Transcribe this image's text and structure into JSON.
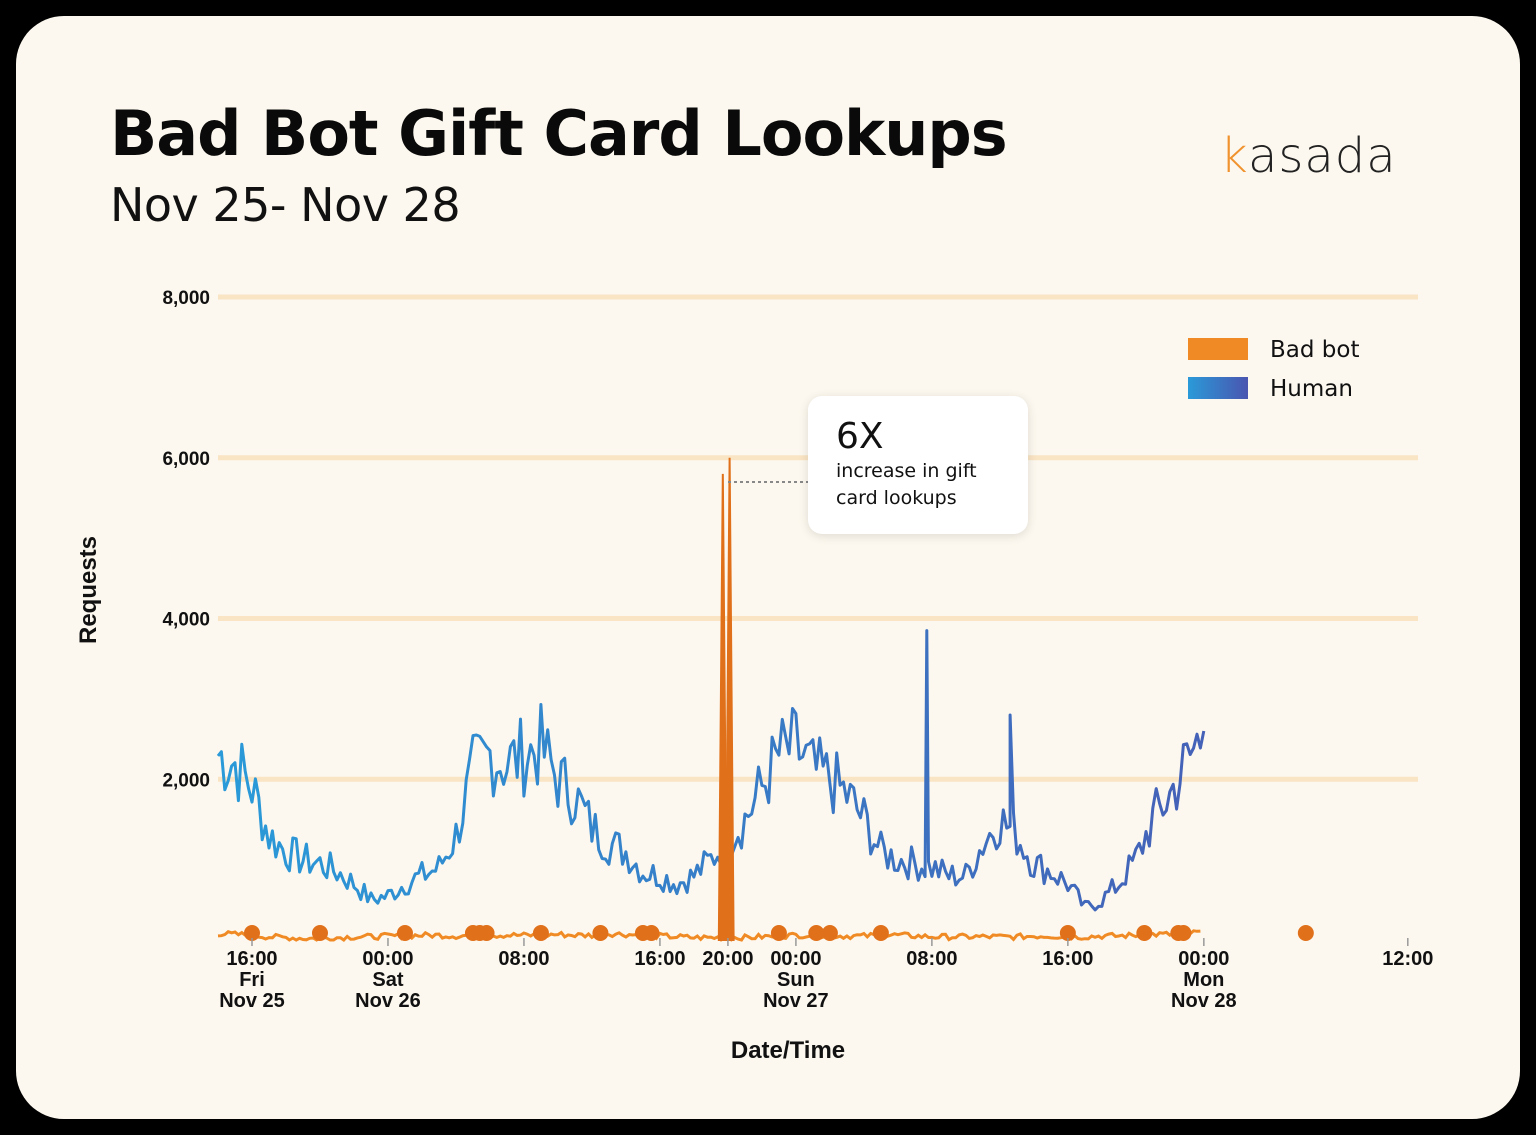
{
  "title": "Bad Bot Gift Card Lookups",
  "subtitle": "Nov 25- Nov 28",
  "logo": {
    "prefix": "k",
    "rest": "asada"
  },
  "callout": {
    "headline": "6X",
    "text": "increase in gift card lookups"
  },
  "colors": {
    "background": "#fcf8ef",
    "bad_bot": "#f08a24",
    "bad_bot_dark": "#e0701a",
    "human_start": "#2a9ad8",
    "human_end": "#4a55b0",
    "gridline": "#f9e4c4"
  },
  "chart_data": {
    "type": "line",
    "title": "Bad Bot Gift Card Lookups",
    "xlabel": "Date/Time",
    "ylabel": "Requests",
    "ylim": [
      0,
      8000
    ],
    "y_ticks": [
      "8,000",
      "6,000",
      "4,000",
      "2,000"
    ],
    "x_tick_values_hours": [
      16,
      24,
      32,
      40,
      44,
      48,
      56,
      64,
      72,
      84
    ],
    "x_ticks": [
      {
        "l1": "16:00",
        "l2": "Fri",
        "l3": "Nov 25"
      },
      {
        "l1": "00:00",
        "l2": "Sat",
        "l3": "Nov 26"
      },
      {
        "l1": "08:00",
        "l2": "",
        "l3": ""
      },
      {
        "l1": "16:00",
        "l2": "",
        "l3": ""
      },
      {
        "l1": "20:00",
        "l2": "",
        "l3": ""
      },
      {
        "l1": "00:00",
        "l2": "Sun",
        "l3": "Nov 27"
      },
      {
        "l1": "08:00",
        "l2": "",
        "l3": ""
      },
      {
        "l1": "16:00",
        "l2": "",
        "l3": ""
      },
      {
        "l1": "00:00",
        "l2": "Mon",
        "l3": "Nov 28"
      },
      {
        "l1": "12:00",
        "l2": "",
        "l3": ""
      }
    ],
    "xlim_hours": [
      14,
      84.6
    ],
    "legend": {
      "position": "top-right",
      "items": [
        "Bad bot",
        "Human"
      ]
    },
    "grid": true,
    "series": [
      {
        "name": "Human",
        "x_start_hour": 14,
        "x_step_hour": 1,
        "values": [
          2300,
          2200,
          1900,
          1300,
          1100,
          1000,
          950,
          850,
          700,
          500,
          550,
          700,
          800,
          900,
          1300,
          2100,
          2300,
          2200,
          2300,
          2400,
          2000,
          1800,
          1400,
          1200,
          1100,
          850,
          800,
          700,
          800,
          1000,
          1250,
          1500,
          1900,
          2300,
          2400,
          2100,
          2000,
          1800,
          1500,
          1100,
          1000,
          950,
          900,
          800,
          800,
          1200,
          1500,
          1300,
          950,
          850,
          700,
          400,
          500,
          700,
          1000,
          1500,
          1800,
          2200,
          2600
        ],
        "extra_points": [
          {
            "x": 55.7,
            "y": 3850
          },
          {
            "x": 60.6,
            "y": 2800
          }
        ]
      },
      {
        "name": "Bad bot",
        "x_start_hour": 14,
        "x_step_hour": 1,
        "values": [
          80,
          70,
          60,
          40,
          30,
          20,
          20,
          30,
          40,
          40,
          50,
          50,
          60,
          60,
          50,
          60,
          60,
          60,
          60,
          60,
          70,
          60,
          60,
          80,
          70,
          60,
          50,
          40,
          30,
          30,
          30,
          30,
          40,
          50,
          60,
          60,
          50,
          50,
          50,
          60,
          60,
          50,
          40,
          40,
          40,
          40,
          40,
          40,
          50,
          50,
          40,
          40,
          50,
          50,
          60,
          70,
          70,
          80,
          100
        ],
        "spikes": [
          {
            "x": 43.7,
            "y": 5800
          },
          {
            "x": 44.1,
            "y": 6000
          }
        ],
        "event_markers_hours": [
          16,
          20,
          25,
          29,
          29.4,
          29.8,
          33,
          36.5,
          39,
          39.5,
          47,
          49.2,
          50,
          53,
          64,
          68.5,
          70.5,
          70.8,
          78
        ]
      }
    ]
  }
}
